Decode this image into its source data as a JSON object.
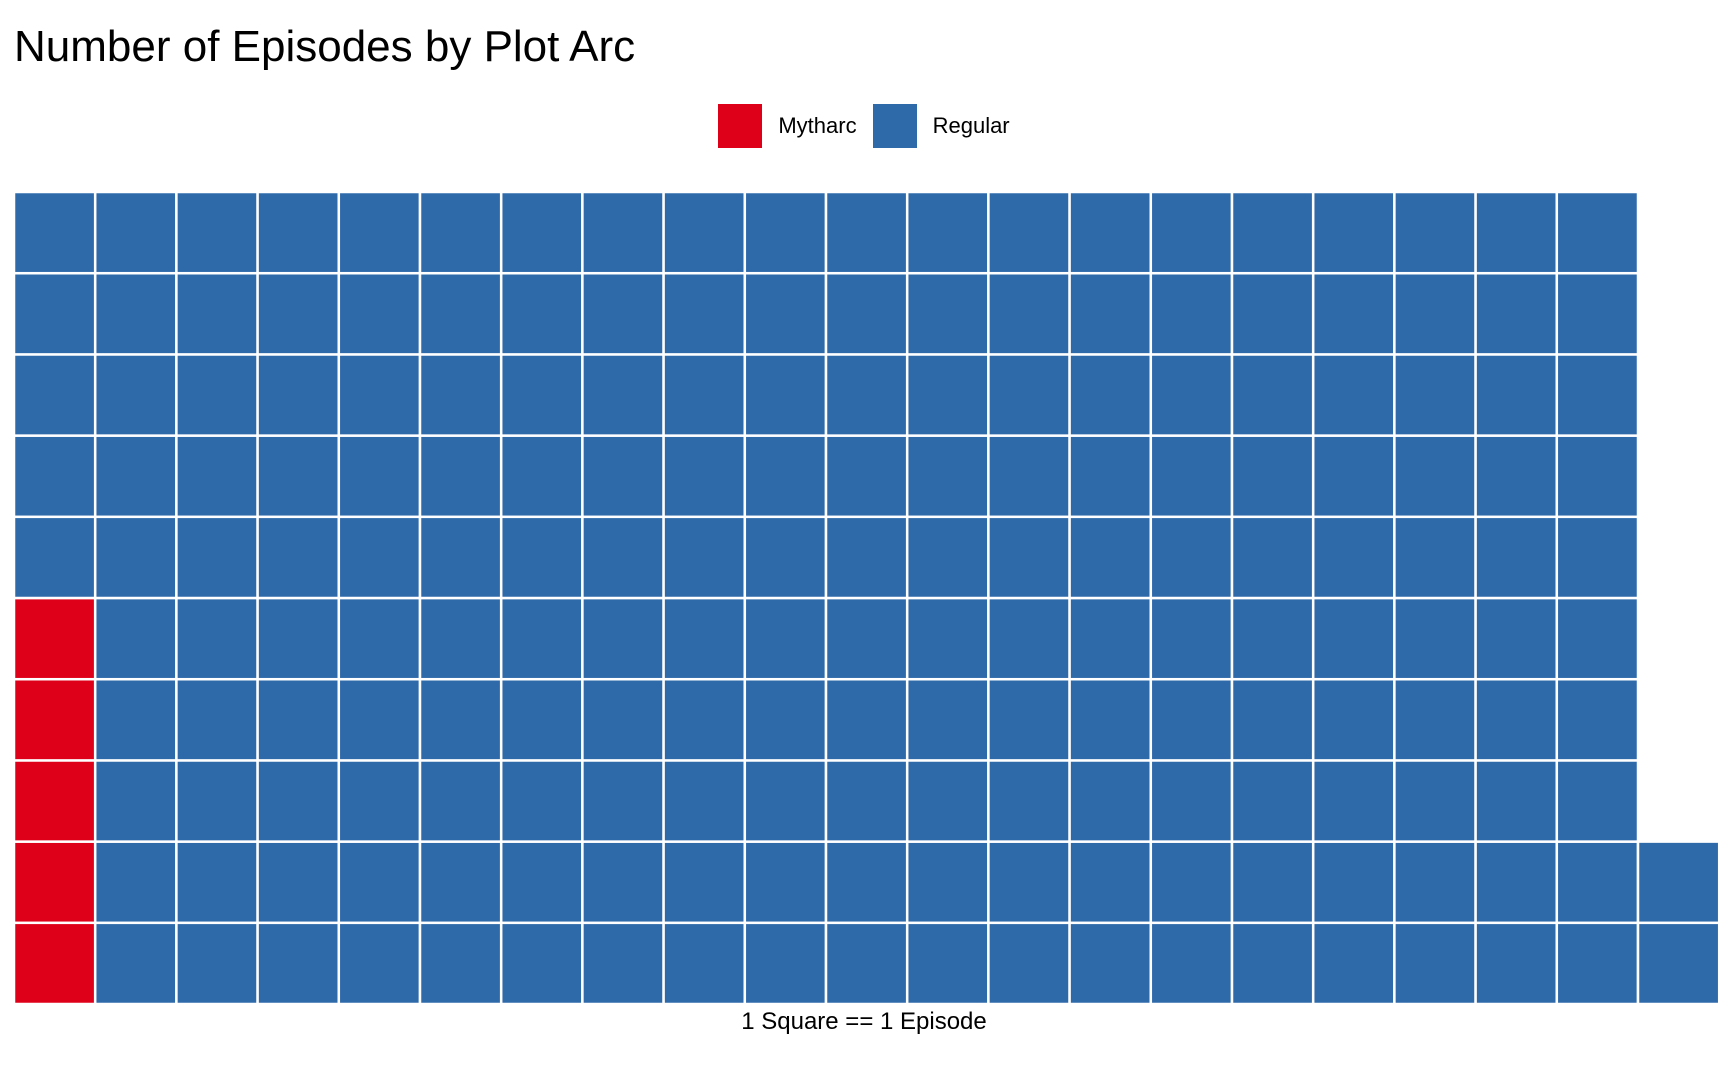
{
  "chart_data": {
    "type": "waffle",
    "title": "Number of Episodes by Plot Arc",
    "xlabel": "1 Square == 1 Episode",
    "unit": "1 Square == 1 Episode",
    "rows": 10,
    "fill_order": "column-major, bottom-to-top",
    "legend_position": "top",
    "categories": [
      "Mytharc",
      "Regular"
    ],
    "series": [
      {
        "name": "Mytharc",
        "value": 5,
        "color": "#DE0018"
      },
      {
        "name": "Regular",
        "value": 197,
        "color": "#2E6AAA"
      }
    ],
    "legend": [
      {
        "label": "Mytharc",
        "color": "#DE0018"
      },
      {
        "label": "Regular",
        "color": "#2E6AAA"
      }
    ]
  }
}
